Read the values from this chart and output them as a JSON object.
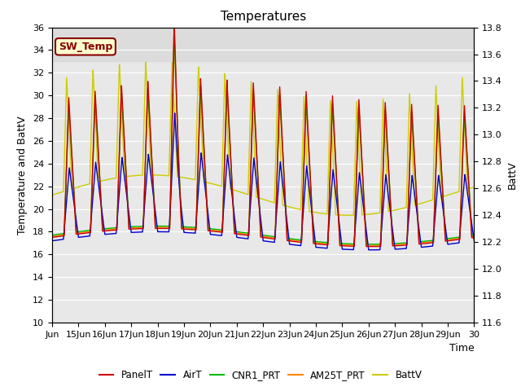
{
  "title": "Temperatures",
  "ylabel_left": "Temperature and BattV",
  "ylabel_right": "BattV",
  "xlabel": "Time",
  "xlim_days": [
    14,
    30
  ],
  "ylim_left": [
    10,
    36
  ],
  "ylim_right": [
    11.6,
    13.8
  ],
  "x_ticks_labels": [
    "Jun",
    "15Jun",
    "16Jun",
    "17Jun",
    "18Jun",
    "19Jun",
    "20Jun",
    "21Jun",
    "22Jun",
    "23Jun",
    "24Jun",
    "25Jun",
    "26Jun",
    "27Jun",
    "28Jun",
    "29Jun",
    "30"
  ],
  "x_ticks_positions": [
    14,
    15,
    16,
    17,
    18,
    19,
    20,
    21,
    22,
    23,
    24,
    25,
    26,
    27,
    28,
    29,
    30
  ],
  "yticks_left": [
    10,
    12,
    14,
    16,
    18,
    20,
    22,
    24,
    26,
    28,
    30,
    32,
    34,
    36
  ],
  "yticks_right": [
    11.6,
    11.8,
    12.0,
    12.2,
    12.4,
    12.6,
    12.8,
    13.0,
    13.2,
    13.4,
    13.6,
    13.8
  ],
  "legend_labels": [
    "PanelT",
    "AirT",
    "CNR1_PRT",
    "AM25T_PRT",
    "BattV"
  ],
  "colors": {
    "PanelT": "#cc0000",
    "AirT": "#0000cc",
    "CNR1_PRT": "#00bb00",
    "AM25T_PRT": "#ff8800",
    "BattV": "#cccc00"
  },
  "sw_temp_box_color": "#880000",
  "annotation": "SW_Temp",
  "plot_bg": "#e8e8e8",
  "lighter_band_color": "#d4d4d4",
  "lighter_band_alpha": 0.6,
  "grid_color": "#ffffff",
  "batt_ylim": [
    11.6,
    13.8
  ],
  "batt_amp": 0.85,
  "batt_base": 12.55,
  "temp_night_base": 17.5,
  "panel_day_amp": 12.0,
  "air_day_amp": 8.5,
  "cnr1_day_amp": 11.5,
  "am25_day_amp": 11.5
}
